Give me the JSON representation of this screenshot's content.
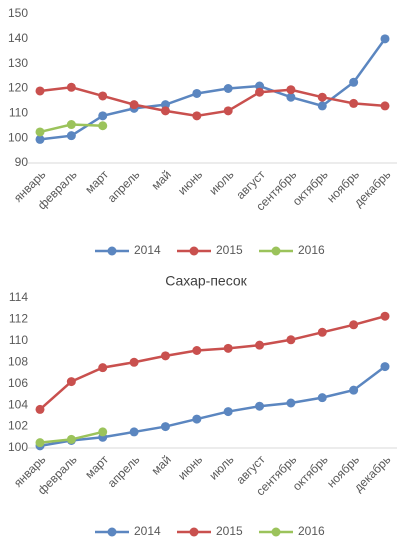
{
  "chart_data": [
    {
      "type": "line",
      "categories": [
        "январь",
        "февраль",
        "март",
        "апрель",
        "май",
        "июнь",
        "июль",
        "август",
        "сентябрь",
        "октябрь",
        "ноябрь",
        "декабрь"
      ],
      "series": [
        {
          "name": "2014",
          "color": "#5b86c0",
          "values": [
            99.5,
            101,
            109,
            112,
            113.5,
            118,
            120,
            121,
            116.5,
            113,
            122.5,
            140
          ]
        },
        {
          "name": "2015",
          "color": "#c9504e",
          "values": [
            119,
            120.5,
            117,
            113.5,
            111,
            109,
            111,
            118.5,
            119.5,
            116.5,
            114,
            113
          ]
        },
        {
          "name": "2016",
          "color": "#9bc35b",
          "values": [
            102.5,
            105.5,
            105,
            null,
            null,
            null,
            null,
            null,
            null,
            null,
            null,
            null
          ]
        }
      ],
      "ylim": [
        90,
        150
      ],
      "yticks": [
        90,
        100,
        110,
        120,
        130,
        140,
        150
      ],
      "grid": false
    },
    {
      "type": "line",
      "title": "Сахар-песок",
      "categories": [
        "январь",
        "февраль",
        "март",
        "апрель",
        "май",
        "июнь",
        "июль",
        "август",
        "сентябрь",
        "октябрь",
        "ноябрь",
        "декабрь"
      ],
      "series": [
        {
          "name": "2014",
          "color": "#5b86c0",
          "values": [
            100.2,
            100.7,
            101,
            101.5,
            102,
            102.7,
            103.4,
            103.9,
            104.2,
            104.7,
            105.4,
            107.6
          ]
        },
        {
          "name": "2015",
          "color": "#c9504e",
          "values": [
            103.6,
            106.2,
            107.5,
            108,
            108.6,
            109.1,
            109.3,
            109.6,
            110.1,
            110.8,
            111.5,
            112.3
          ]
        },
        {
          "name": "2016",
          "color": "#9bc35b",
          "values": [
            100.5,
            100.8,
            101.5,
            null,
            null,
            null,
            null,
            null,
            null,
            null,
            null,
            null
          ]
        }
      ],
      "ylim": [
        100,
        114
      ],
      "yticks": [
        100,
        102,
        104,
        106,
        108,
        110,
        112,
        114
      ],
      "grid": false
    }
  ]
}
